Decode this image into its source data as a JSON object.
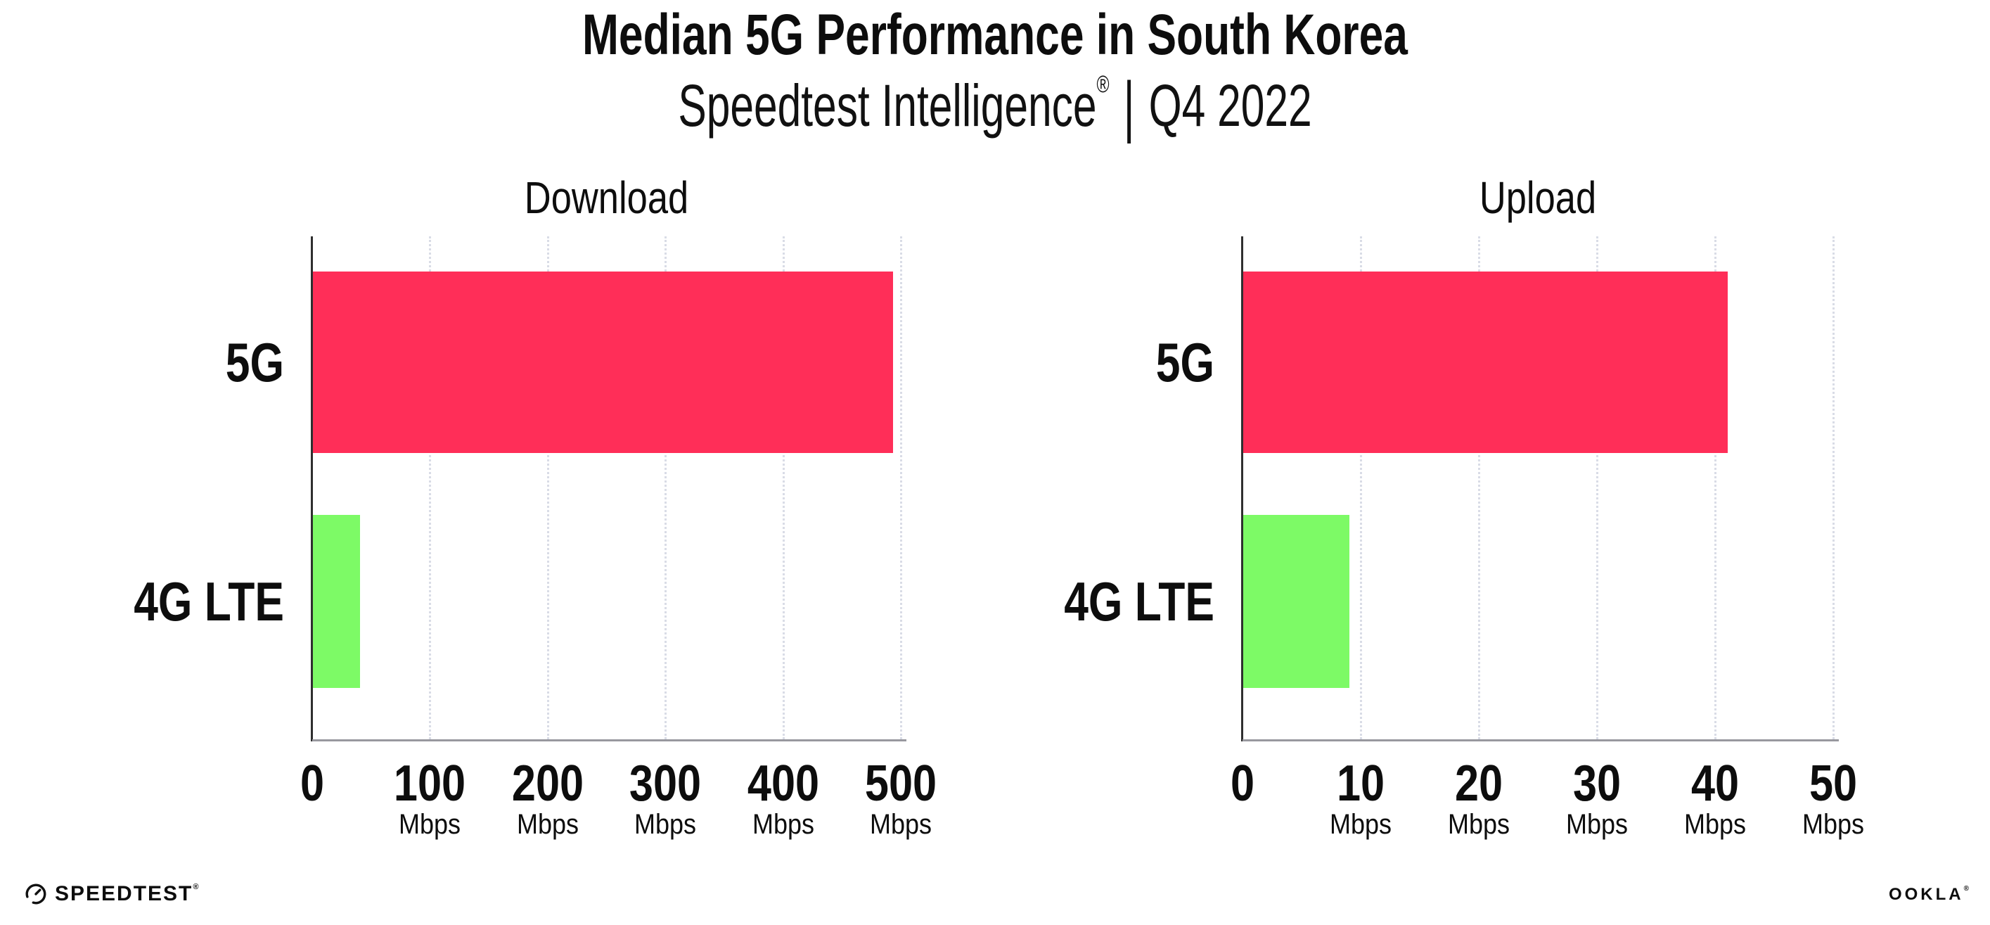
{
  "header": {
    "title": "Median 5G Performance in South Korea",
    "subtitle_brand": "Speedtest Intelligence",
    "subtitle_registered": "®",
    "subtitle_separator": "|",
    "subtitle_period": "Q4 2022"
  },
  "chart_data": [
    {
      "type": "bar",
      "orientation": "horizontal",
      "title": "Download",
      "categories": [
        "5G",
        "4G LTE"
      ],
      "values": [
        493,
        40
      ],
      "unit": "Mbps",
      "xlim": [
        0,
        500
      ],
      "xticks": [
        0,
        100,
        200,
        300,
        400,
        500
      ],
      "tick_unit_label": "Mbps",
      "bar_colors": [
        "#ff2e58",
        "#7dfa66"
      ],
      "grid": "dotted-vertical-gridlines",
      "legend": "none"
    },
    {
      "type": "bar",
      "orientation": "horizontal",
      "title": "Upload",
      "categories": [
        "5G",
        "4G LTE"
      ],
      "values": [
        41,
        9
      ],
      "unit": "Mbps",
      "xlim": [
        0,
        50
      ],
      "xticks": [
        0,
        10,
        20,
        30,
        40,
        50
      ],
      "tick_unit_label": "Mbps",
      "bar_colors": [
        "#ff2e58",
        "#7dfa66"
      ],
      "grid": "dotted-vertical-gridlines",
      "legend": "none"
    }
  ],
  "footer": {
    "speedtest_label": "SPEEDTEST",
    "speedtest_mark": "®",
    "ookla_label": "OOKLA",
    "ookla_mark": "®"
  },
  "colors": {
    "bar_5g": "#ff2e58",
    "bar_4g_lte": "#7dfa66",
    "gridline": "#d9dce6",
    "axis_line": "#2f2f2f",
    "baseline": "#98989f",
    "text": "#0d0d0d"
  }
}
